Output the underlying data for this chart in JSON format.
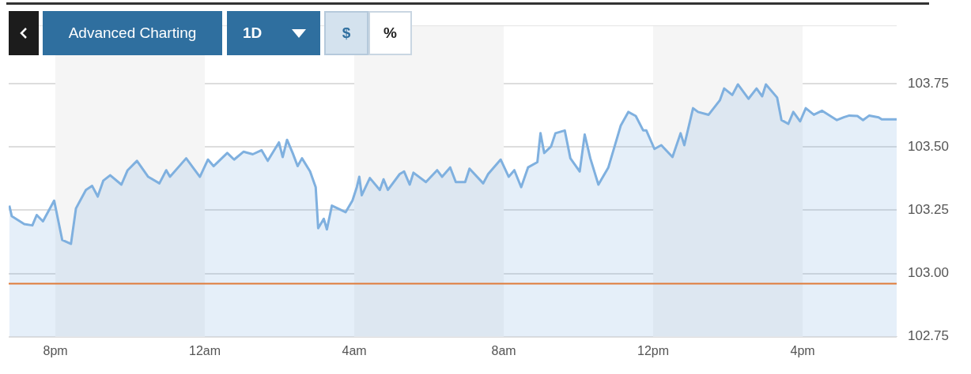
{
  "chart_data": {
    "type": "area",
    "x": [
      "--01-01T18:46",
      "--01-01T18:50",
      "--01-01T19:10",
      "--01-01T19:23",
      "--01-01T19:30",
      "--01-01T19:40",
      "--01-01T19:58",
      "--01-01T20:11",
      "--01-01T20:25",
      "--01-01T20:33",
      "--01-01T20:49",
      "--01-01T20:59",
      "--01-01T21:08",
      "--01-01T21:17",
      "--01-01T21:28",
      "--01-01T21:46",
      "--01-01T21:56",
      "--01-01T22:11",
      "--01-01T22:29",
      "--01-01T22:47",
      "--01-01T22:58",
      "--01-01T23:04",
      "--01-01T23:30",
      "--01-01T23:52",
      "--01-02T00:05",
      "--01-02T00:14",
      "--01-02T00:36",
      "--01-02T00:47",
      "--01-02T01:02",
      "--01-02T01:17",
      "--01-02T01:31",
      "--01-02T01:41",
      "--01-02T01:59",
      "--01-02T02:05",
      "--01-02T02:12",
      "--01-02T02:21",
      "--01-02T02:29",
      "--01-02T02:36",
      "--01-02T02:49",
      "--01-02T02:58",
      "--01-02T03:02",
      "--01-02T03:11",
      "--01-02T03:16",
      "--01-02T03:24",
      "--01-02T03:46",
      "--01-02T03:57",
      "--01-02T04:04",
      "--01-02T04:08",
      "--01-02T04:12",
      "--01-02T04:25",
      "--01-02T04:41",
      "--01-02T04:47",
      "--01-02T04:54",
      "--01-02T05:13",
      "--01-02T05:20",
      "--01-02T05:29",
      "--01-02T05:35",
      "--01-02T05:55",
      "--01-02T06:13",
      "--01-02T06:21",
      "--01-02T06:34",
      "--01-02T06:43",
      "--01-02T06:58",
      "--01-02T07:05",
      "--01-02T07:27",
      "--01-02T07:35",
      "--01-02T07:55",
      "--01-02T08:08",
      "--01-02T08:17",
      "--01-02T08:28",
      "--01-02T08:39",
      "--01-02T08:54",
      "--01-02T08:59",
      "--01-02T09:05",
      "--01-02T09:16",
      "--01-02T09:23",
      "--01-02T09:38",
      "--01-02T09:47",
      "--01-02T10:02",
      "--01-02T10:10",
      "--01-02T10:19",
      "--01-02T10:32",
      "--01-02T10:48",
      "--01-02T11:08",
      "--01-02T11:20",
      "--01-02T11:32",
      "--01-02T11:44",
      "--01-02T11:49",
      "--01-02T12:02",
      "--01-02T12:13",
      "--01-02T12:31",
      "--01-02T12:44",
      "--01-02T12:50",
      "--01-02T13:04",
      "--01-02T13:12",
      "--01-02T13:29",
      "--01-02T13:47",
      "--01-02T13:54",
      "--01-02T14:07",
      "--01-02T14:16",
      "--01-02T14:33",
      "--01-02T14:46",
      "--01-02T14:55",
      "--01-02T15:01",
      "--01-02T15:19",
      "--01-02T15:26",
      "--01-02T15:37",
      "--01-02T15:45",
      "--01-02T15:56",
      "--01-02T16:05",
      "--01-02T16:18",
      "--01-02T16:31",
      "--01-02T16:55",
      "--01-02T17:06",
      "--01-02T17:15",
      "--01-02T17:28",
      "--01-02T17:37",
      "--01-02T17:47",
      "--01-02T18:02",
      "--01-02T18:07",
      "--01-02T18:31"
    ],
    "series": [
      {
        "color": "#7fb0df",
        "values": [
          103.268,
          103.226,
          103.195,
          103.19,
          103.231,
          103.206,
          103.288,
          103.132,
          103.117,
          103.257,
          103.33,
          103.346,
          103.304,
          103.367,
          103.388,
          103.351,
          103.408,
          103.445,
          103.382,
          103.356,
          103.408,
          103.382,
          103.455,
          103.382,
          103.45,
          103.424,
          103.476,
          103.45,
          103.481,
          103.471,
          103.487,
          103.445,
          103.518,
          103.46,
          103.528,
          103.476,
          103.424,
          103.455,
          103.403,
          103.341,
          103.179,
          103.216,
          103.174,
          103.268,
          103.242,
          103.288,
          103.341,
          103.382,
          103.309,
          103.377,
          103.33,
          103.372,
          103.33,
          103.393,
          103.403,
          103.351,
          103.398,
          103.361,
          103.408,
          103.382,
          103.419,
          103.361,
          103.361,
          103.414,
          103.356,
          103.393,
          103.45,
          103.382,
          103.408,
          103.341,
          103.419,
          103.44,
          103.554,
          103.476,
          103.502,
          103.554,
          103.565,
          103.455,
          103.403,
          103.549,
          103.455,
          103.351,
          103.419,
          103.585,
          103.638,
          103.622,
          103.565,
          103.565,
          103.492,
          103.507,
          103.46,
          103.554,
          103.507,
          103.653,
          103.638,
          103.627,
          103.684,
          103.731,
          103.705,
          103.747,
          103.69,
          103.731,
          103.7,
          103.747,
          103.695,
          103.606,
          103.591,
          103.638,
          103.601,
          103.653,
          103.627,
          103.643,
          103.606,
          103.617,
          103.624,
          103.622,
          103.606,
          103.624,
          103.617,
          103.609,
          103.609
        ]
      }
    ],
    "xlim": [
      "--01-01T18:45",
      "--01-02T18:31"
    ],
    "xticks": [
      {
        "value": "--01-01T20:00",
        "label": "8pm"
      },
      {
        "value": "--01-02T00:00",
        "label": "12am"
      },
      {
        "value": "--01-02T04:00",
        "label": "4am"
      },
      {
        "value": "--01-02T08:00",
        "label": "8am"
      },
      {
        "value": "--01-02T12:00",
        "label": "12pm"
      },
      {
        "value": "--01-02T16:00",
        "label": "4pm"
      }
    ],
    "ylim": [
      102.75,
      103.98
    ],
    "yticks": [
      {
        "value": 102.75,
        "label": "102.75"
      },
      {
        "value": 103,
        "label": "103.00"
      },
      {
        "value": 103.25,
        "label": "103.25"
      },
      {
        "value": 103.5,
        "label": "103.50"
      },
      {
        "value": 103.75,
        "label": "103.75"
      }
    ],
    "grid": "y",
    "ref_lines": [
      {
        "axis": "y",
        "value": 102.96,
        "color": "#e07b39"
      }
    ],
    "bands": [
      {
        "axis": "x",
        "from": "--01-01T20:00",
        "to": "--01-02T00:00",
        "color": "#f5f5f5"
      },
      {
        "axis": "x",
        "from": "--01-02T04:00",
        "to": "--01-02T08:00",
        "color": "#f5f5f5"
      },
      {
        "axis": "x",
        "from": "--01-02T12:00",
        "to": "--01-02T16:00",
        "color": "#f5f5f5"
      }
    ],
    "annotations": [
      "Advanced Charting",
      "1D",
      "$",
      "%"
    ]
  }
}
